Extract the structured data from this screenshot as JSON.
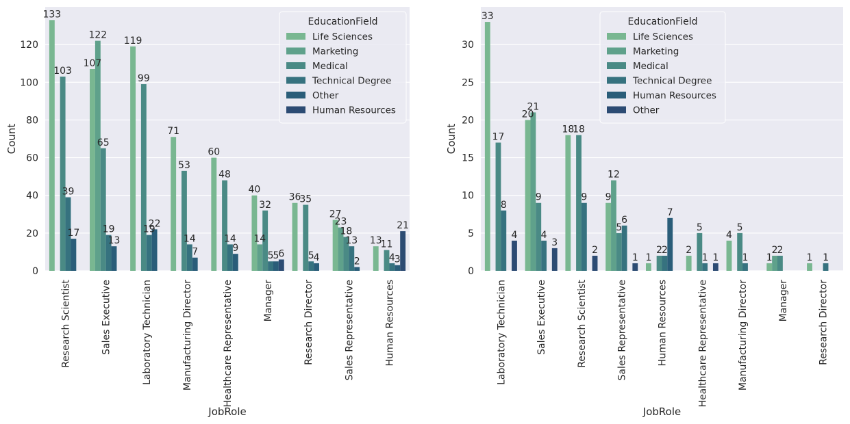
{
  "chart_data": [
    {
      "type": "bar",
      "xlabel": "JobRole",
      "ylabel": "Count",
      "ylim": [
        0,
        140
      ],
      "yticks": [
        0,
        20,
        40,
        60,
        80,
        100,
        120
      ],
      "grid": true,
      "legend": {
        "title": "EducationField",
        "placement": "top-right"
      },
      "categories": [
        "Research Scientist",
        "Sales Executive",
        "Laboratory Technician",
        "Manufacturing Director",
        "Healthcare Representative",
        "Manager",
        "Research Director",
        "Sales Representative",
        "Human Resources"
      ],
      "series": [
        {
          "name": "Life Sciences",
          "color": "#79b791",
          "values": [
            133,
            107,
            119,
            71,
            60,
            40,
            36,
            27,
            13
          ]
        },
        {
          "name": "Marketing",
          "color": "#5fa18b",
          "values": [
            0,
            122,
            0,
            0,
            0,
            14,
            0,
            23,
            0
          ]
        },
        {
          "name": "Medical",
          "color": "#4a8a85",
          "values": [
            103,
            65,
            99,
            53,
            48,
            32,
            35,
            18,
            11
          ]
        },
        {
          "name": "Technical Degree",
          "color": "#36727f",
          "values": [
            39,
            19,
            19,
            14,
            14,
            5,
            5,
            13,
            4
          ]
        },
        {
          "name": "Other",
          "color": "#2a5d79",
          "values": [
            17,
            13,
            22,
            7,
            9,
            5,
            4,
            2,
            3
          ]
        },
        {
          "name": "Human Resources",
          "color": "#2c4b73",
          "values": [
            0,
            0,
            0,
            0,
            0,
            6,
            0,
            0,
            21
          ]
        }
      ]
    },
    {
      "type": "bar",
      "xlabel": "JobRole",
      "ylabel": "Count",
      "ylim": [
        0,
        35
      ],
      "yticks": [
        0,
        5,
        10,
        15,
        20,
        25,
        30
      ],
      "grid": true,
      "legend": {
        "title": "EducationField",
        "placement": "top-right"
      },
      "categories": [
        "Laboratory Technician",
        "Sales Executive",
        "Research Scientist",
        "Sales Representative",
        "Human Resources",
        "Healthcare Representative",
        "Manufacturing Director",
        "Manager",
        "Research Director"
      ],
      "series": [
        {
          "name": "Life Sciences",
          "color": "#79b791",
          "values": [
            33,
            20,
            18,
            9,
            1,
            2,
            4,
            1,
            1
          ]
        },
        {
          "name": "Marketing",
          "color": "#5fa18b",
          "values": [
            0,
            21,
            0,
            12,
            0,
            0,
            0,
            2,
            0
          ]
        },
        {
          "name": "Medical",
          "color": "#4a8a85",
          "values": [
            17,
            9,
            18,
            5,
            2,
            5,
            5,
            2,
            0
          ]
        },
        {
          "name": "Technical Degree",
          "color": "#36727f",
          "values": [
            8,
            4,
            9,
            6,
            2,
            1,
            1,
            0,
            1
          ]
        },
        {
          "name": "Human Resources",
          "color": "#2a5d79",
          "values": [
            0,
            0,
            0,
            0,
            7,
            0,
            0,
            0,
            0
          ]
        },
        {
          "name": "Other",
          "color": "#2c4b73",
          "values": [
            4,
            3,
            2,
            1,
            0,
            1,
            0,
            0,
            0
          ]
        }
      ]
    }
  ]
}
